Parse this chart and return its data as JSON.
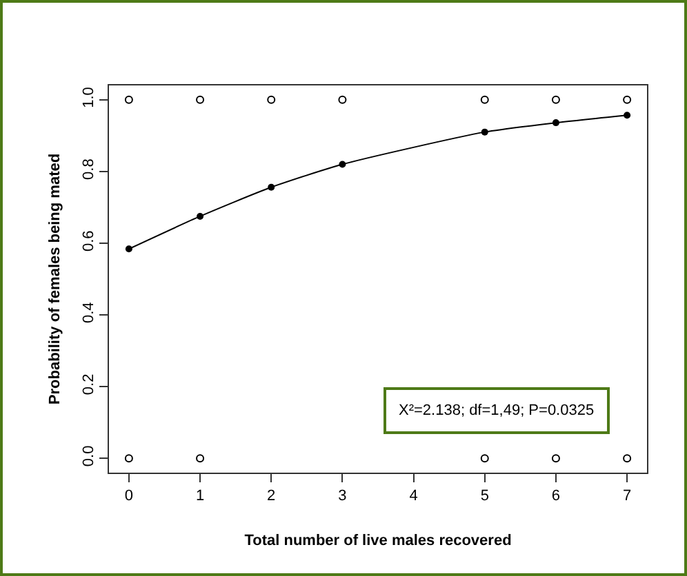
{
  "chart_data": {
    "type": "scatter",
    "xlabel": "Total number of live males recovered",
    "ylabel": "Probability of females being mated",
    "xlim": [
      -0.28,
      7.28
    ],
    "ylim": [
      -0.04,
      1.04
    ],
    "xticks": [
      0,
      1,
      2,
      3,
      4,
      5,
      6,
      7
    ],
    "yticks": [
      {
        "value": 0,
        "label": "0.0"
      },
      {
        "value": 0.2,
        "label": "0.2"
      },
      {
        "value": 0.4,
        "label": "0.4"
      },
      {
        "value": 0.6,
        "label": "0.6"
      },
      {
        "value": 0.8,
        "label": "0.8"
      },
      {
        "value": 1,
        "label": "1.0"
      }
    ],
    "grid": false,
    "series": [
      {
        "color": "#000000",
        "marker": "circle",
        "x": [
          0,
          1,
          2,
          3,
          5,
          6,
          7
        ],
        "values": [
          1,
          1,
          1,
          1,
          1,
          1,
          1
        ]
      },
      {
        "color": "#000000",
        "marker": "circle",
        "x": [
          0,
          1,
          5,
          6,
          7
        ],
        "values": [
          0,
          0,
          0,
          0,
          0
        ]
      },
      {
        "type": "line",
        "color": "#000000",
        "marker": "circle",
        "line_style": "solid",
        "x": [
          0,
          1,
          2,
          3,
          5,
          6,
          7
        ],
        "values": [
          0.584,
          0.675,
          0.756,
          0.82,
          0.91,
          0.936,
          0.957
        ]
      }
    ],
    "annotations": [
      "X²=2.138; df=1,49; P=0.0325"
    ]
  }
}
